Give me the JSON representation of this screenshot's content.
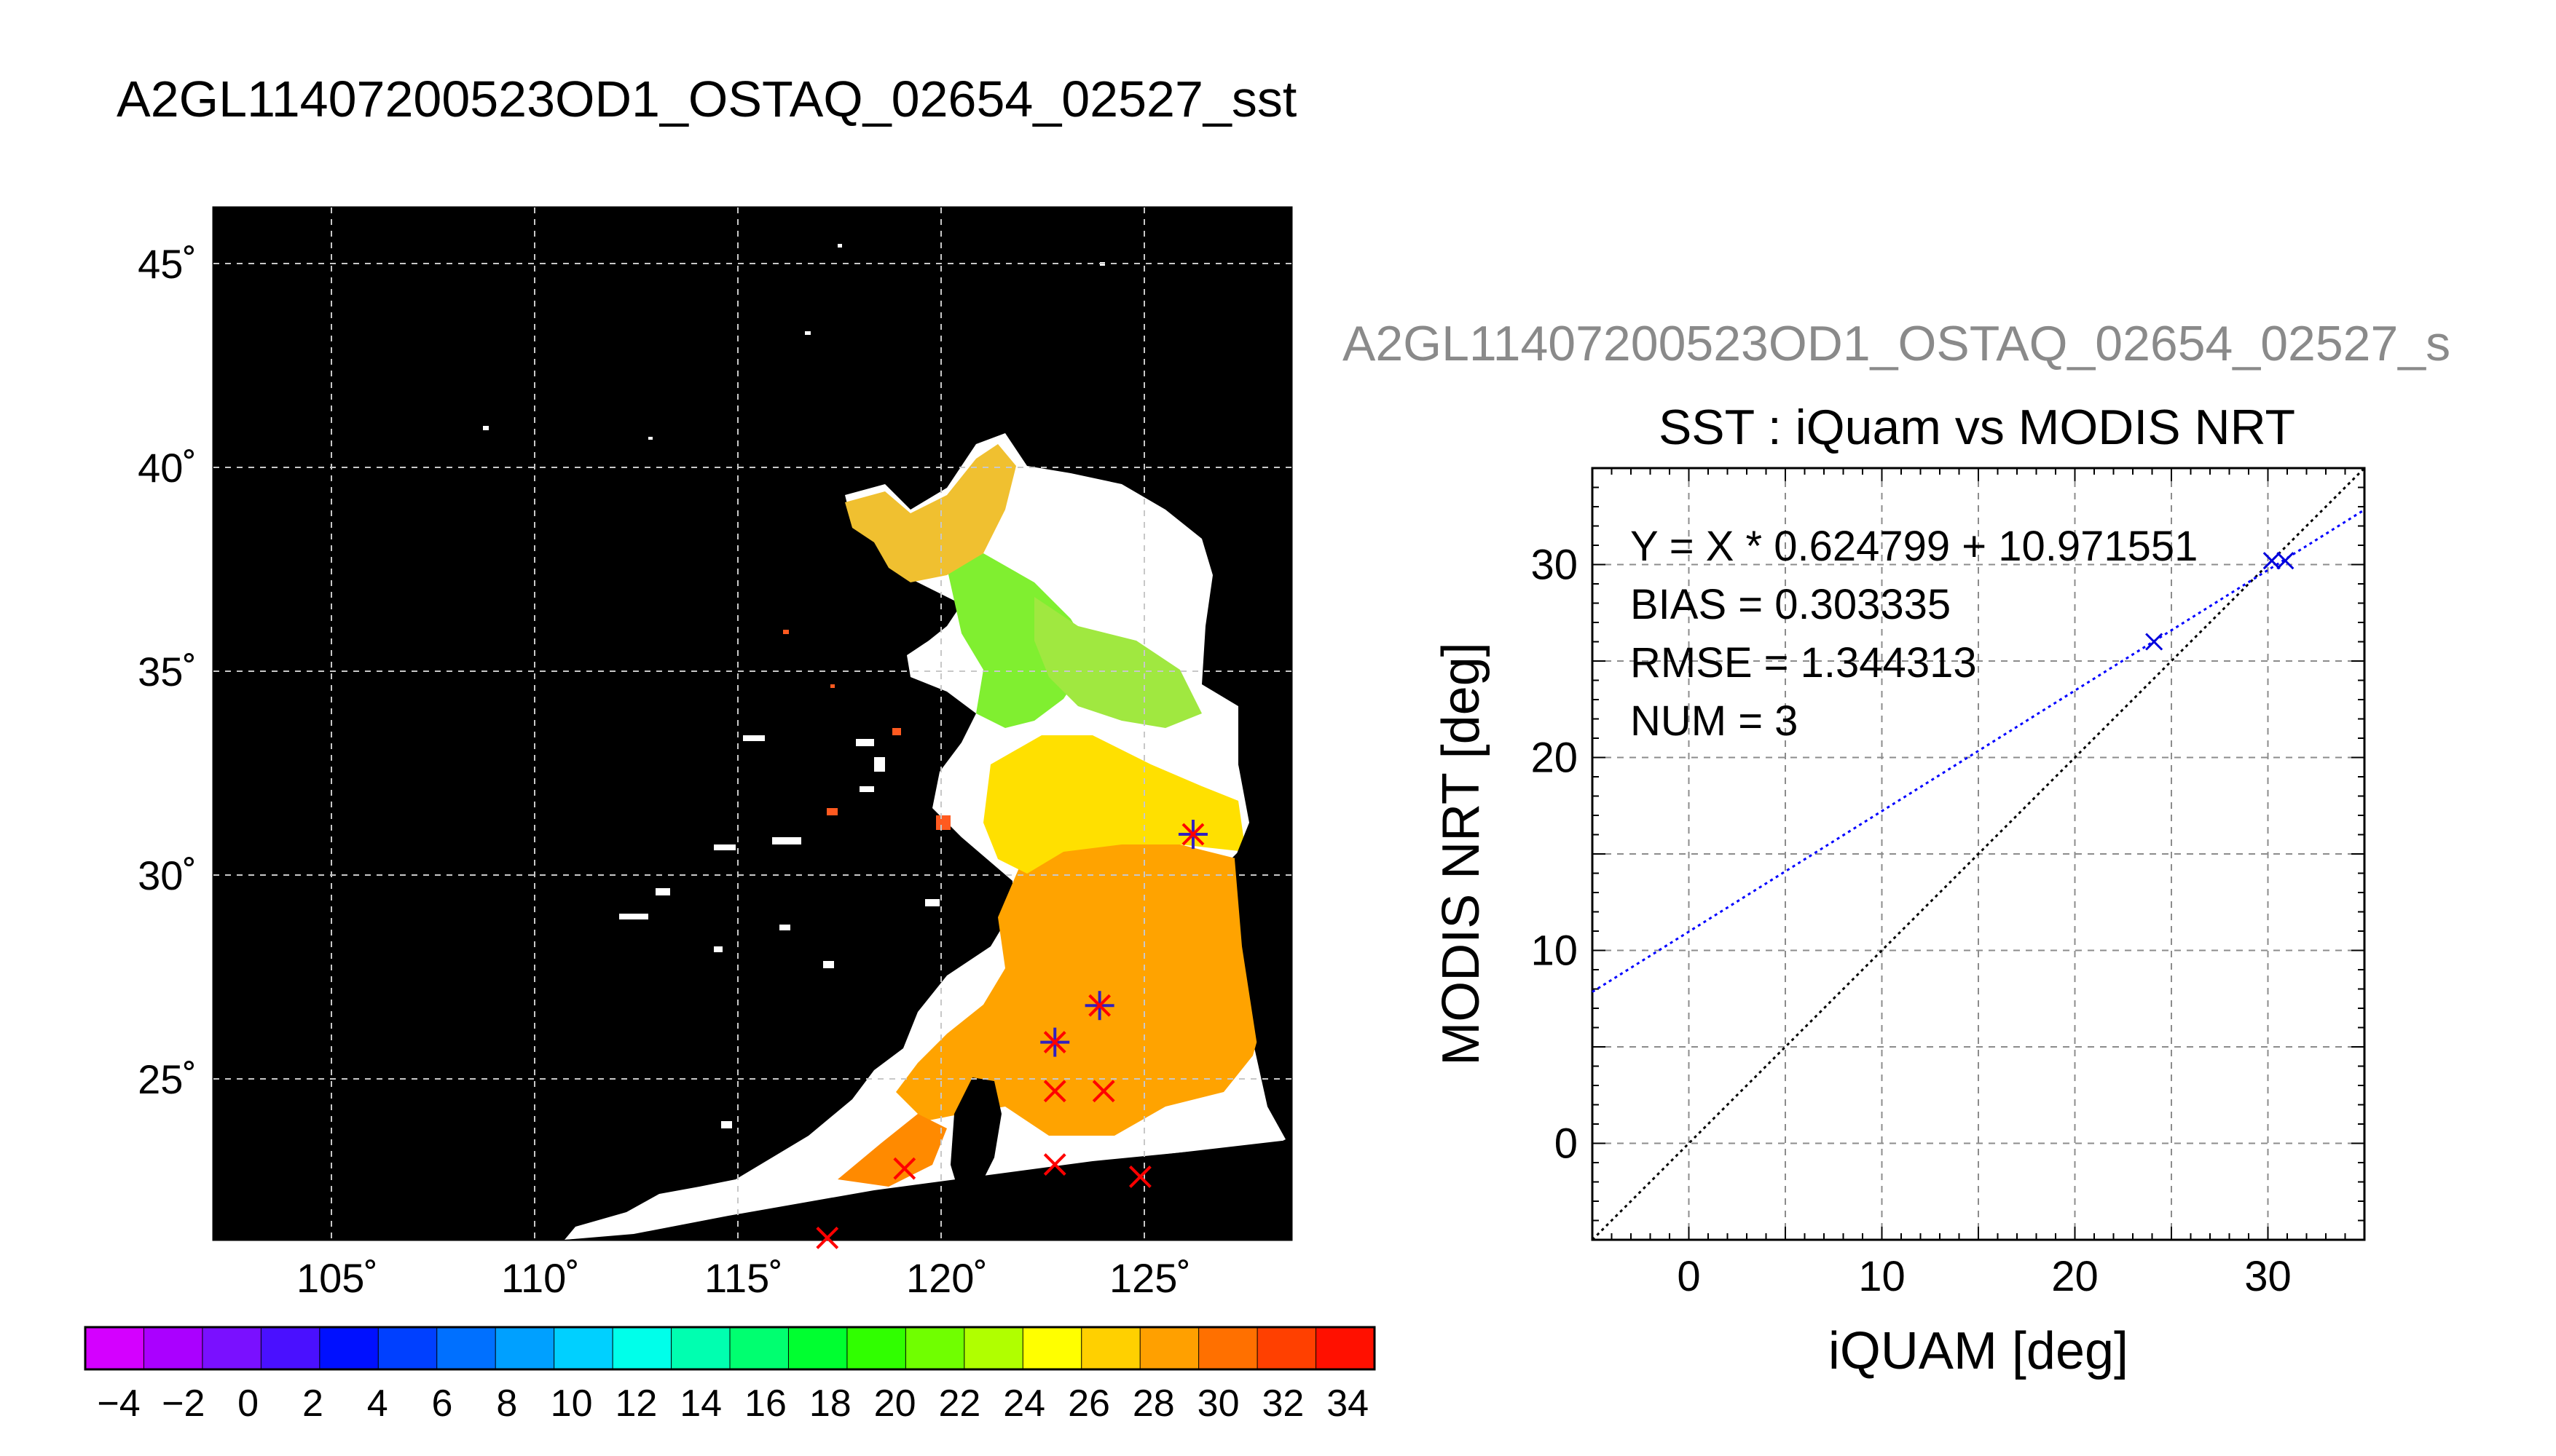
{
  "page_title": "A2GL11407200523OD1_OSTAQ_02654_02527_sst",
  "map": {
    "lat_ticks": [
      "45˚",
      "40˚",
      "35˚",
      "30˚",
      "25˚"
    ],
    "lon_ticks": [
      "105˚",
      "110˚",
      "115˚",
      "120˚",
      "125˚"
    ],
    "colorbar_labels": [
      "−4",
      "−2",
      "0",
      "2",
      "4",
      "6",
      "8",
      "10",
      "12",
      "14",
      "16",
      "18",
      "20",
      "22",
      "24",
      "26",
      "28",
      "30",
      "32",
      "34"
    ],
    "colorbar_colors": [
      "#d400ff",
      "#aa00ff",
      "#7a10ff",
      "#4a10ff",
      "#0010ff",
      "#0040ff",
      "#0070ff",
      "#00a0ff",
      "#00d0ff",
      "#00ffea",
      "#00ffb0",
      "#00ff70",
      "#00ff30",
      "#30ff00",
      "#70ff00",
      "#b0ff00",
      "#ffff00",
      "#ffd000",
      "#ffa000",
      "#ff7000",
      "#ff4000",
      "#ff1000"
    ],
    "colors": {
      "background": "#000000",
      "cloud": "#ffffff",
      "marker": "#ff0000",
      "marker_matched": "#3020c0"
    },
    "markers": [
      {
        "lon": 126.2,
        "lat": 31.0,
        "matched": true
      },
      {
        "lon": 122.8,
        "lat": 25.9,
        "matched": true
      },
      {
        "lon": 123.9,
        "lat": 26.8,
        "matched": true
      },
      {
        "lon": 122.8,
        "lat": 24.7,
        "matched": false
      },
      {
        "lon": 124.0,
        "lat": 24.7,
        "matched": false
      },
      {
        "lon": 119.1,
        "lat": 22.8,
        "matched": false
      },
      {
        "lon": 122.8,
        "lat": 22.9,
        "matched": false
      },
      {
        "lon": 124.9,
        "lat": 22.6,
        "matched": false
      },
      {
        "lon": 117.2,
        "lat": 21.1,
        "matched": false
      }
    ]
  },
  "scatter": {
    "subtitle": "A2GL11407200523OD1_OSTAQ_02654_02527_s",
    "stats": {
      "equation": "Y = X * 0.624799 + 10.971551",
      "bias": "BIAS = 0.303335",
      "rmse": "RMSE = 1.344313",
      "num": "NUM = 3"
    },
    "colors": {
      "points": "#0000dd",
      "fit": "#0000ff",
      "identity": "#000000"
    }
  },
  "chart_data": {
    "type": "scatter",
    "title": "SST : iQuam vs MODIS NRT",
    "xlabel": "iQUAM [deg]",
    "ylabel": "MODIS NRT [deg]",
    "xlim": [
      -5,
      35
    ],
    "ylim": [
      -5,
      35
    ],
    "xticks": [
      0,
      10,
      20,
      30
    ],
    "yticks": [
      0,
      10,
      20,
      30
    ],
    "grid": true,
    "series": [
      {
        "x": [
          24.1,
          30.2,
          30.9
        ],
        "y": [
          26.0,
          30.2,
          30.2
        ]
      }
    ],
    "fit_line": {
      "slope": 0.624799,
      "intercept": 10.971551
    },
    "identity_line": true
  }
}
